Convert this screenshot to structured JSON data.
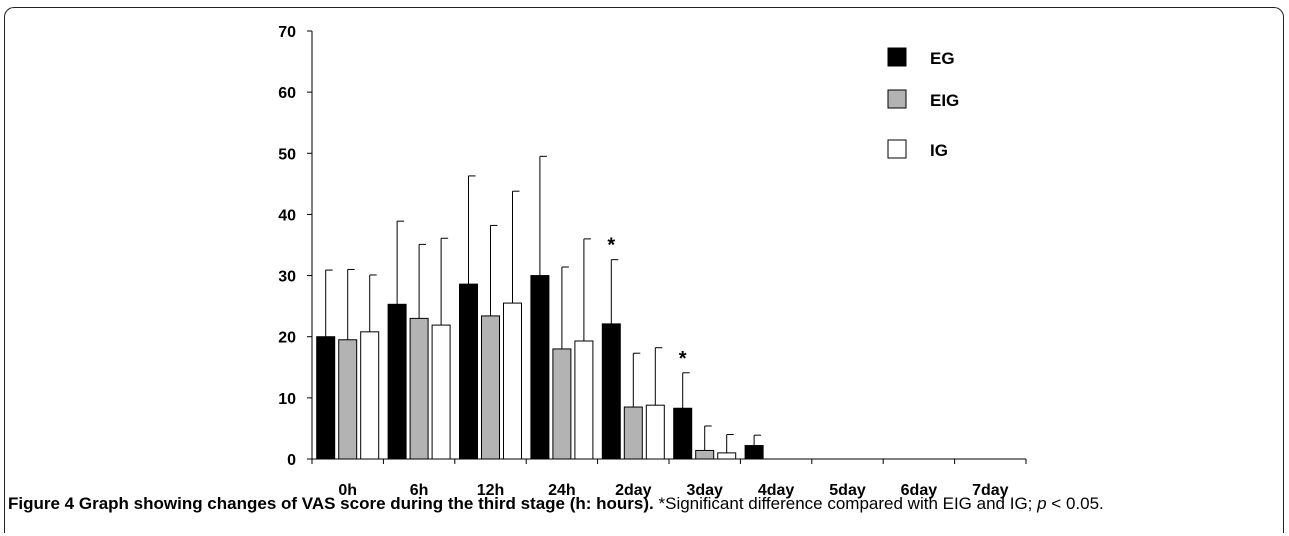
{
  "chart_data": {
    "type": "bar",
    "categories": [
      "0h",
      "6h",
      "12h",
      "24h",
      "2day",
      "3day",
      "4day",
      "5day",
      "6day",
      "7day"
    ],
    "ylim": [
      0,
      70
    ],
    "yticks": [
      0,
      10,
      20,
      30,
      40,
      50,
      60,
      70
    ],
    "series": [
      {
        "name": "EG",
        "color": "#000000",
        "values": [
          20,
          25.3,
          28.6,
          30,
          22.1,
          8.3,
          2.2,
          0,
          0,
          0
        ],
        "errors": [
          10.9,
          13.6,
          17.7,
          19.5,
          10.5,
          5.8,
          1.7,
          0,
          0,
          0
        ]
      },
      {
        "name": "EIG",
        "color": "#b3b3b3",
        "values": [
          19.5,
          23,
          23.4,
          18,
          8.5,
          1.4,
          0,
          0,
          0,
          0
        ],
        "errors": [
          11.5,
          12.1,
          14.8,
          13.4,
          8.8,
          4.0,
          0,
          0,
          0,
          0
        ]
      },
      {
        "name": "IG",
        "color": "#ffffff",
        "values": [
          20.8,
          21.9,
          25.5,
          19.3,
          8.8,
          1.0,
          0,
          0,
          0,
          0
        ],
        "errors": [
          9.3,
          14.2,
          18.3,
          16.7,
          9.4,
          3.0,
          0,
          0,
          0,
          0
        ]
      }
    ],
    "annotations": [
      {
        "text": "*",
        "category": "2day",
        "series": "EG"
      },
      {
        "text": "*",
        "category": "3day",
        "series": "EG"
      }
    ],
    "legend_position": "top-right",
    "grid": false
  },
  "caption": {
    "label": "Figure 4",
    "title": "Graph showing changes of VAS score during the third stage (h: hours).",
    "note_prefix": "*Significant difference compared with EIG and IG; ",
    "note_p": "p",
    "note_suffix": " < 0.05."
  }
}
